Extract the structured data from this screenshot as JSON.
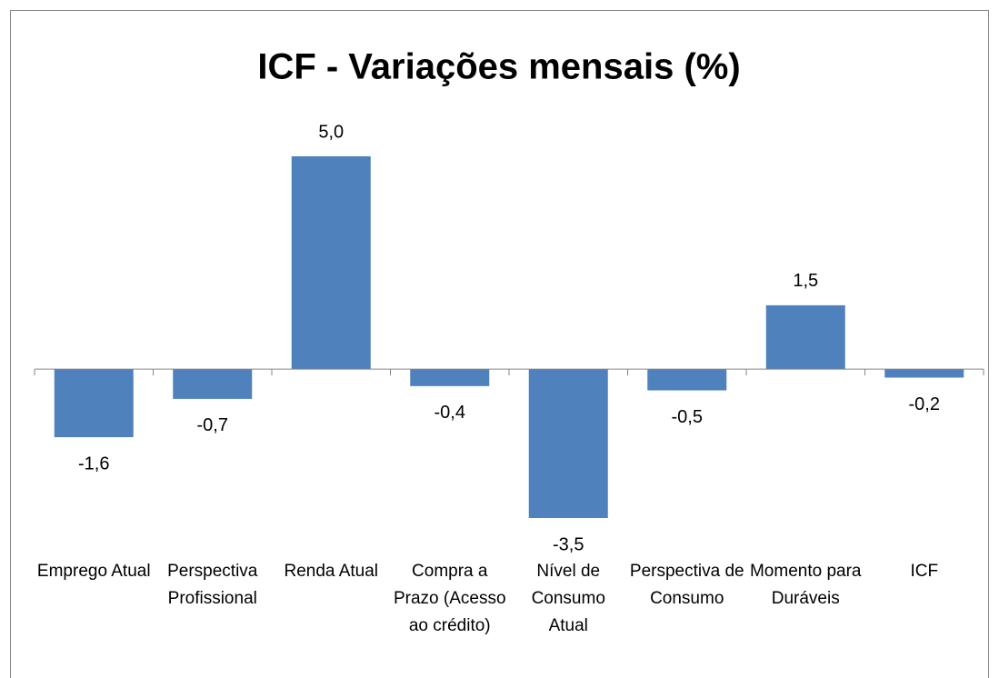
{
  "chart_data": {
    "type": "bar",
    "title": "ICF - Variações mensais (%)",
    "categories": [
      "Emprego Atual",
      "Perspectiva Profissional",
      "Renda Atual",
      "Compra a Prazo (Acesso ao crédito)",
      "Nível de Consumo Atual",
      "Perspectiva de Consumo",
      "Momento para Duráveis",
      "ICF"
    ],
    "values": [
      -1.6,
      -0.7,
      5.0,
      -0.4,
      -3.5,
      -0.5,
      1.5,
      -0.2
    ],
    "value_labels": [
      "-1,6",
      "-0,7",
      "5,0",
      "-0,4",
      "-3,5",
      "-0,5",
      "1,5",
      "-0,2"
    ],
    "color": "#4f81bd"
  }
}
